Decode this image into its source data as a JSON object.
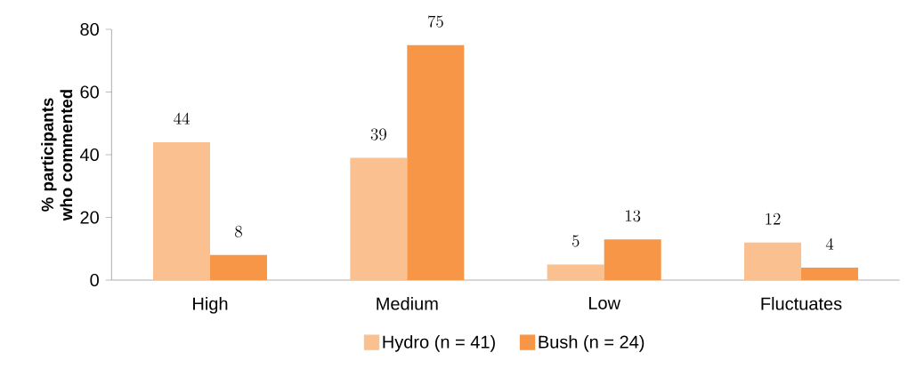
{
  "chart_data": {
    "type": "bar",
    "ylabel": "% participants who commented",
    "categories": [
      "High",
      "Medium",
      "Low",
      "Fluctuates"
    ],
    "series": [
      {
        "name": "Hydro (n = 41)",
        "color": "#fac090",
        "values": [
          44,
          39,
          5,
          12
        ]
      },
      {
        "name": "Bush (n = 24)",
        "color": "#f79646",
        "values": [
          8,
          75,
          13,
          4
        ]
      }
    ],
    "ylim": [
      0,
      80
    ],
    "yticks": [
      0,
      20,
      40,
      60,
      80
    ],
    "grid": false,
    "legend": "bottom",
    "data_labels": true
  }
}
